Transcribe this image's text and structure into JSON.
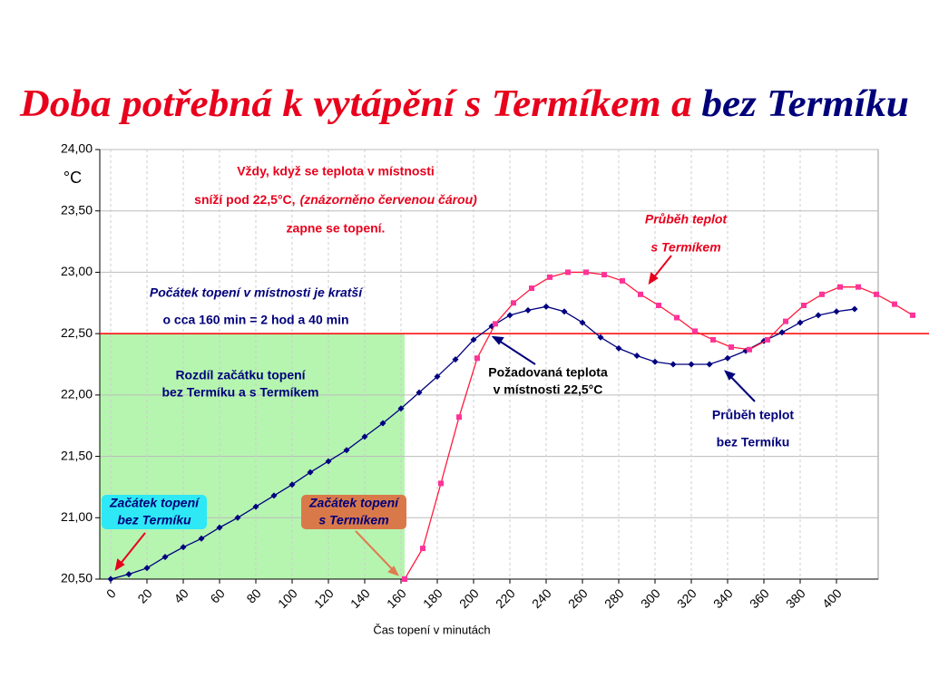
{
  "chart_data": {
    "type": "line",
    "title": [
      "Doba potřebná k vytápění s Termíkem a",
      "bez Termíku"
    ],
    "title_colors": [
      "#e8001c",
      "#00007a"
    ],
    "y_unit": "°C",
    "xlabel": "Čas topení v minutách",
    "xlim": [
      -6,
      423
    ],
    "xticks": [
      0,
      20,
      40,
      60,
      80,
      100,
      120,
      140,
      160,
      180,
      200,
      220,
      240,
      260,
      280,
      300,
      320,
      340,
      360,
      380,
      400
    ],
    "ylim": [
      20.5,
      24
    ],
    "yticks": [
      {
        "value": 20.5,
        "label": "20,50"
      },
      {
        "value": 21,
        "label": "21,00"
      },
      {
        "value": 21.5,
        "label": "21,50"
      },
      {
        "value": 22,
        "label": "22,00"
      },
      {
        "value": 22.5,
        "label": "22,50"
      },
      {
        "value": 23,
        "label": "23,00"
      },
      {
        "value": 23.5,
        "label": "23,50"
      },
      {
        "value": 24,
        "label": "24,00"
      }
    ],
    "grid": true,
    "reference_line": {
      "value": 22.5,
      "color": "#ff0000"
    },
    "highlight": {
      "x": [
        -6,
        162
      ],
      "y": [
        20.5,
        22.5
      ],
      "color": "#b6f5b0"
    },
    "series": [
      {
        "name": "bez Termíku",
        "color": "#000080",
        "marker": "diamond",
        "x": [
          0,
          10,
          20,
          30,
          40,
          50,
          60,
          70,
          80,
          90,
          100,
          110,
          120,
          130,
          140,
          150,
          160,
          170,
          180,
          190,
          200,
          210,
          220,
          230,
          240,
          250,
          260,
          270,
          280,
          290,
          300,
          310,
          320,
          330,
          340,
          350,
          360,
          370,
          380,
          390,
          400,
          410
        ],
        "values": [
          20.5,
          20.54,
          20.59,
          20.68,
          20.76,
          20.83,
          20.92,
          21.0,
          21.09,
          21.18,
          21.27,
          21.37,
          21.46,
          21.55,
          21.66,
          21.77,
          21.89,
          22.02,
          22.15,
          22.29,
          22.45,
          22.56,
          22.65,
          22.69,
          22.72,
          22.68,
          22.59,
          22.47,
          22.38,
          22.32,
          22.27,
          22.25,
          22.25,
          22.25,
          22.3,
          22.36,
          22.44,
          22.51,
          22.59,
          22.65,
          22.68,
          22.7
        ]
      },
      {
        "name": "s Termíkem",
        "color": "#ff1a3c",
        "marker_color": "#ff3399",
        "marker": "square",
        "x": [
          162,
          172,
          182,
          192,
          202,
          212,
          222,
          232,
          242,
          252,
          262,
          272,
          282,
          292,
          302,
          312,
          322,
          332,
          342,
          352,
          362,
          372,
          382,
          392,
          402,
          412,
          422,
          432,
          442
        ],
        "values": [
          20.5,
          20.75,
          21.28,
          21.82,
          22.3,
          22.58,
          22.75,
          22.87,
          22.96,
          23.0,
          23.0,
          22.98,
          22.93,
          22.82,
          22.73,
          22.63,
          22.52,
          22.45,
          22.39,
          22.37,
          22.45,
          22.6,
          22.73,
          22.82,
          22.88,
          22.88,
          22.82,
          22.74,
          22.65
        ]
      }
    ],
    "annotations": {
      "rule": [
        "Vždy, když se teplota v místnosti",
        "sníží pod 22,5°C,",
        "(znázorněno červenou čárou)",
        "zapne se topení."
      ],
      "red_curve": [
        "Průběh teplot",
        "s Termíkem"
      ],
      "start_diff": [
        "Počátek topení v místnosti je kratší",
        "o cca 160 min = 2 hod a 40 min"
      ],
      "area": [
        "Rozdíl začátku topení",
        "bez Termíku a s Termíkem"
      ],
      "target": [
        "Požadovaná teplota",
        "v místnosti 22,5°C"
      ],
      "blue_curve": [
        "Průběh teplot",
        "bez Termíku"
      ],
      "start_blue": [
        "Začátek topení",
        "bez Termíku"
      ],
      "start_red": [
        "Začátek topení",
        "s Termíkem"
      ]
    }
  }
}
